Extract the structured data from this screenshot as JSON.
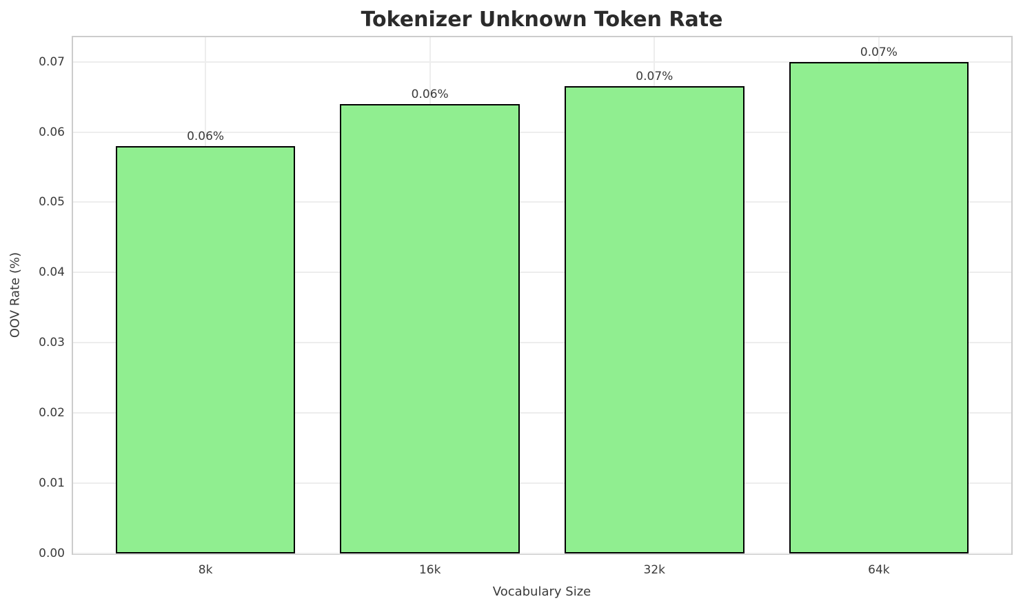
{
  "chart_data": {
    "type": "bar",
    "title": "Tokenizer Unknown Token Rate",
    "xlabel": "Vocabulary Size",
    "ylabel": "OOV Rate (%)",
    "categories": [
      "8k",
      "16k",
      "32k",
      "64k"
    ],
    "values": [
      0.058,
      0.064,
      0.0665,
      0.07
    ],
    "bar_labels": [
      "0.06%",
      "0.06%",
      "0.07%",
      "0.07%"
    ],
    "yticks": [
      {
        "value": 0.0,
        "label": "0.00"
      },
      {
        "value": 0.01,
        "label": "0.01"
      },
      {
        "value": 0.02,
        "label": "0.02"
      },
      {
        "value": 0.03,
        "label": "0.03"
      },
      {
        "value": 0.04,
        "label": "0.04"
      },
      {
        "value": 0.05,
        "label": "0.05"
      },
      {
        "value": 0.06,
        "label": "0.06"
      },
      {
        "value": 0.07,
        "label": "0.07"
      }
    ],
    "ylim": [
      0,
      0.0735
    ],
    "xlim": [
      -0.59,
      3.59
    ],
    "bar_width": 0.8,
    "grid": "both",
    "legend": "none",
    "colors": {
      "bar_fill": "#90EE90",
      "bar_edge": "#000000",
      "grid": "#ededed",
      "spine": "#cccccc",
      "text": "#3a3a3a",
      "title": "#2b2b2b",
      "background": "#ffffff"
    }
  }
}
